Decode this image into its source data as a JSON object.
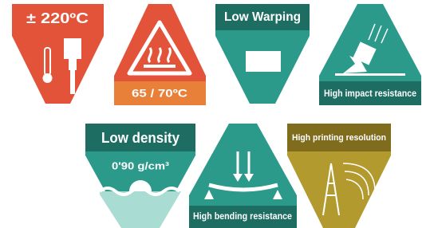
{
  "badges": [
    {
      "label": "± 220ºC"
    },
    {
      "label": "65 / 70ºC"
    },
    {
      "label": "Low Warping"
    },
    {
      "label": "High impact resistance"
    },
    {
      "label": "Low density",
      "detail": "0'90 g/cm³"
    },
    {
      "label": "High bending resistance"
    },
    {
      "label": "High printing resolution"
    }
  ]
}
